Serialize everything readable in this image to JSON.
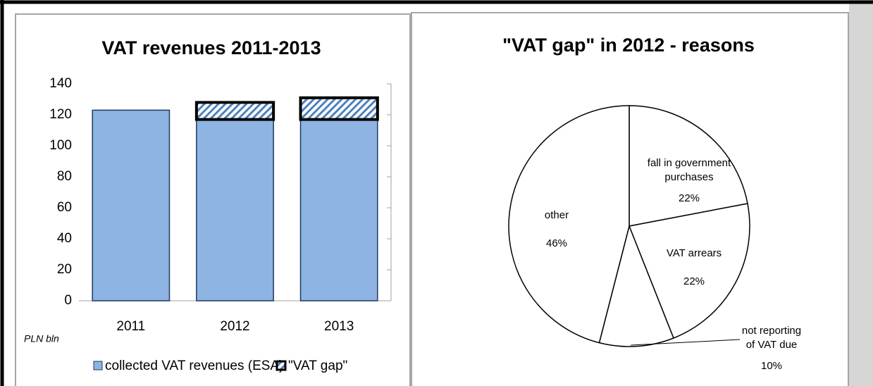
{
  "chart_data": [
    {
      "type": "bar",
      "title": "VAT revenues 2011-2013",
      "ylabel": "PLN bln",
      "categories": [
        "2011",
        "2012",
        "2013"
      ],
      "series": [
        {
          "name": "collected VAT revenues (ESA)",
          "color": "#8db4e2",
          "values": [
            123,
            117,
            117
          ]
        },
        {
          "name": "\"VAT gap\"",
          "color": "#4f81bd",
          "pattern": "hatch",
          "values": [
            null,
            11,
            14
          ]
        }
      ],
      "stacked": true,
      "ylim": [
        0,
        140
      ],
      "yticks": [
        0,
        20,
        40,
        60,
        80,
        100,
        120,
        140
      ],
      "grid": false
    },
    {
      "type": "pie",
      "title": "\"VAT gap\" in 2012 - reasons",
      "categories": [
        "fall in government purchases",
        "VAT arrears",
        "not reporting of VAT due",
        "other"
      ],
      "values": [
        22,
        22,
        10,
        46
      ],
      "value_labels": [
        "22%",
        "22%",
        "10%",
        "46%"
      ],
      "color": "#ffffff"
    }
  ]
}
